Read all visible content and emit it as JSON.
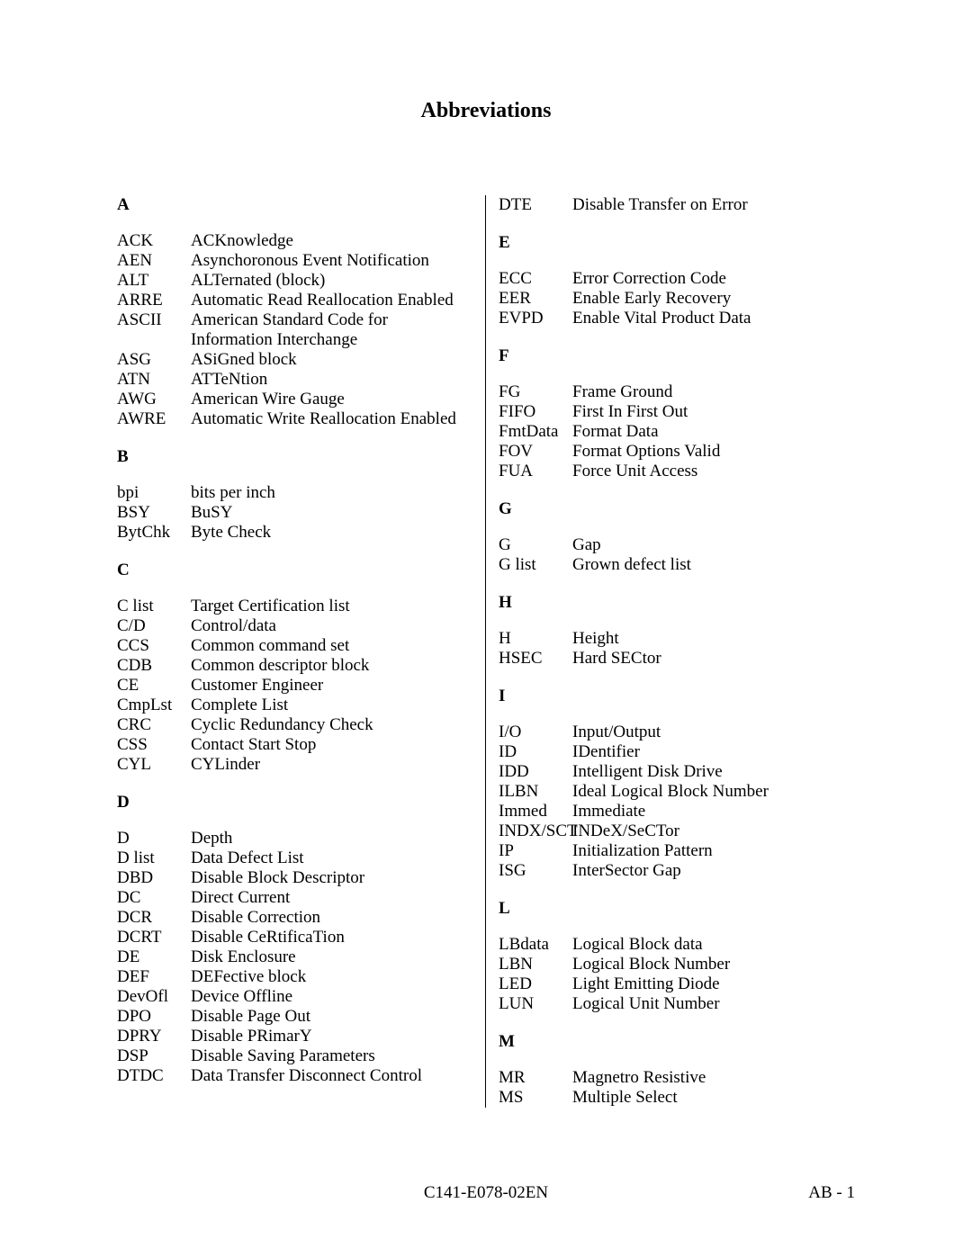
{
  "title": "Abbreviations",
  "footer_center": "C141-E078-02EN",
  "footer_right": "AB - 1",
  "left": {
    "A": {
      "label": "A",
      "items": [
        {
          "abbr": "ACK",
          "def": "ACKnowledge"
        },
        {
          "abbr": "AEN",
          "def": "Asynchoronous Event Notification"
        },
        {
          "abbr": "ALT",
          "def": "ALTernated (block)"
        },
        {
          "abbr": "ARRE",
          "def": "Automatic Read Reallocation Enabled"
        },
        {
          "abbr": "ASCII",
          "def": "American Standard Code for Information Interchange"
        },
        {
          "abbr": "ASG",
          "def": "ASiGned block"
        },
        {
          "abbr": "ATN",
          "def": "ATTeNtion"
        },
        {
          "abbr": "AWG",
          "def": "American Wire Gauge"
        },
        {
          "abbr": "AWRE",
          "def": "Automatic Write Reallocation Enabled"
        }
      ]
    },
    "B": {
      "label": "B",
      "items": [
        {
          "abbr": "bpi",
          "def": "bits per inch"
        },
        {
          "abbr": "BSY",
          "def": "BuSY"
        },
        {
          "abbr": "BytChk",
          "def": "Byte Check"
        }
      ]
    },
    "C": {
      "label": "C",
      "items": [
        {
          "abbr": "C list",
          "def": "Target Certification list"
        },
        {
          "abbr": "C/D",
          "def": "Control/data"
        },
        {
          "abbr": "CCS",
          "def": "Common command set"
        },
        {
          "abbr": "CDB",
          "def": "Common descriptor block"
        },
        {
          "abbr": "CE",
          "def": "Customer Engineer"
        },
        {
          "abbr": "CmpLst",
          "def": "Complete List"
        },
        {
          "abbr": "CRC",
          "def": "Cyclic Redundancy Check"
        },
        {
          "abbr": "CSS",
          "def": "Contact Start Stop"
        },
        {
          "abbr": "CYL",
          "def": "CYLinder"
        }
      ]
    },
    "D": {
      "label": "D",
      "items": [
        {
          "abbr": "D",
          "def": "Depth"
        },
        {
          "abbr": "D list",
          "def": "Data Defect List"
        },
        {
          "abbr": "DBD",
          "def": "Disable Block Descriptor"
        },
        {
          "abbr": "DC",
          "def": "Direct Current"
        },
        {
          "abbr": "DCR",
          "def": "Disable Correction"
        },
        {
          "abbr": "DCRT",
          "def": "Disable CeRtificaTion"
        },
        {
          "abbr": "DE",
          "def": "Disk Enclosure"
        },
        {
          "abbr": "DEF",
          "def": "DEFective block"
        },
        {
          "abbr": "DevOfl",
          "def": "Device Offline"
        },
        {
          "abbr": "DPO",
          "def": "Disable Page Out"
        },
        {
          "abbr": "DPRY",
          "def": "Disable PRimarY"
        },
        {
          "abbr": "DSP",
          "def": "Disable Saving Parameters"
        },
        {
          "abbr": "DTDC",
          "def": "Data Transfer Disconnect Control"
        }
      ]
    }
  },
  "right": {
    "pre": [
      {
        "abbr": "DTE",
        "def": "Disable Transfer on Error"
      }
    ],
    "E": {
      "label": "E",
      "items": [
        {
          "abbr": "ECC",
          "def": "Error Correction Code"
        },
        {
          "abbr": "EER",
          "def": "Enable Early Recovery"
        },
        {
          "abbr": "EVPD",
          "def": "Enable Vital Product Data"
        }
      ]
    },
    "F": {
      "label": "F",
      "items": [
        {
          "abbr": "FG",
          "def": "Frame Ground"
        },
        {
          "abbr": "FIFO",
          "def": "First In First Out"
        },
        {
          "abbr": "FmtData",
          "def": "Format Data"
        },
        {
          "abbr": "FOV",
          "def": "Format Options Valid"
        },
        {
          "abbr": "FUA",
          "def": "Force Unit Access"
        }
      ]
    },
    "G": {
      "label": "G",
      "items": [
        {
          "abbr": "G",
          "def": "Gap"
        },
        {
          "abbr": "G list",
          "def": "Grown defect list"
        }
      ]
    },
    "H": {
      "label": "H",
      "items": [
        {
          "abbr": "H",
          "def": "Height"
        },
        {
          "abbr": "HSEC",
          "def": "Hard SECtor"
        }
      ]
    },
    "I": {
      "label": "I",
      "items": [
        {
          "abbr": "I/O",
          "def": "Input/Output"
        },
        {
          "abbr": "ID",
          "def": "IDentifier"
        },
        {
          "abbr": "IDD",
          "def": "Intelligent Disk Drive"
        },
        {
          "abbr": "ILBN",
          "def": "Ideal Logical Block Number"
        },
        {
          "abbr": "Immed",
          "def": "Immediate"
        },
        {
          "abbr": "INDX/SCT",
          "def": "INDeX/SeCTor"
        },
        {
          "abbr": "IP",
          "def": "Initialization Pattern"
        },
        {
          "abbr": "ISG",
          "def": "InterSector Gap"
        }
      ]
    },
    "L": {
      "label": "L",
      "items": [
        {
          "abbr": "LBdata",
          "def": "Logical Block data"
        },
        {
          "abbr": "LBN",
          "def": "Logical Block Number"
        },
        {
          "abbr": "LED",
          "def": "Light Emitting Diode"
        },
        {
          "abbr": "LUN",
          "def": "Logical Unit Number"
        }
      ]
    },
    "M": {
      "label": "M",
      "items": [
        {
          "abbr": "MR",
          "def": "Magnetro Resistive"
        },
        {
          "abbr": "MS",
          "def": "Multiple Select"
        }
      ]
    }
  }
}
